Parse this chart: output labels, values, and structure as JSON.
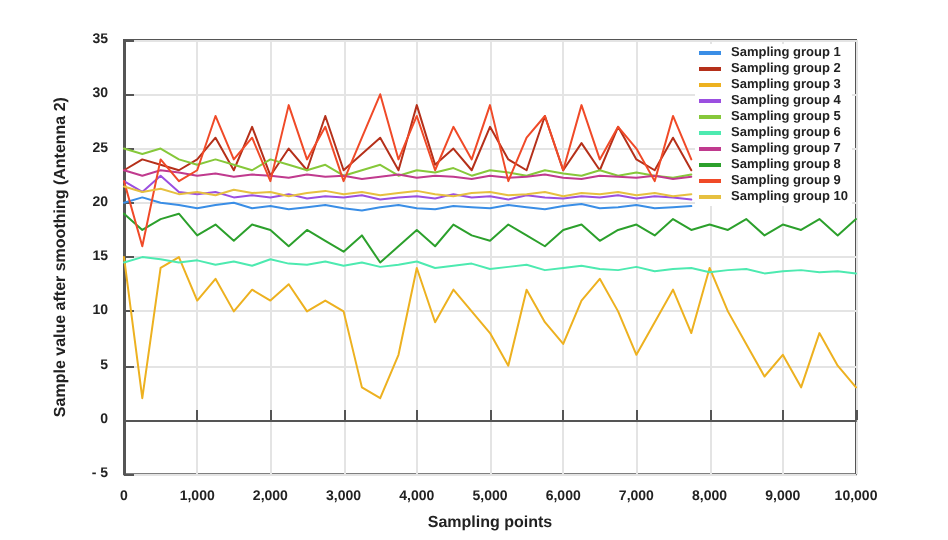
{
  "chart_data": {
    "type": "line",
    "xlabel": "Sampling points",
    "ylabel": "Sample value after smoothing (Antenna 2)",
    "xlim": [
      0,
      10000
    ],
    "ylim": [
      -5,
      35
    ],
    "xticks": [
      0,
      {
        "value": 1000,
        "label": "1,000"
      },
      {
        "value": 2000,
        "label": "2,000"
      },
      {
        "value": 3000,
        "label": "3,000"
      },
      {
        "value": 4000,
        "label": "4,000"
      },
      {
        "value": 5000,
        "label": "5,000"
      },
      {
        "value": 6000,
        "label": "6,000"
      },
      {
        "value": 7000,
        "label": "7,000"
      },
      {
        "value": 8000,
        "label": "8,000"
      },
      {
        "value": 9000,
        "label": "9,000"
      },
      {
        "value": 10000,
        "label": "10,000"
      }
    ],
    "yticks": [
      {
        "value": -5,
        "label": "- 5"
      },
      0,
      5,
      10,
      15,
      20,
      25,
      30,
      35
    ],
    "grid": true,
    "legend": "top right",
    "marker": "none",
    "line_style": "solid",
    "x": [
      0,
      250,
      500,
      750,
      1000,
      1250,
      1500,
      1750,
      2000,
      2250,
      2500,
      2750,
      3000,
      3250,
      3500,
      3750,
      4000,
      4250,
      4500,
      4750,
      5000,
      5250,
      5500,
      5750,
      6000,
      6250,
      6500,
      6750,
      7000,
      7250,
      7500,
      7750,
      8000,
      8250,
      8500,
      8750,
      9000,
      9250,
      9500,
      9750,
      10000
    ],
    "series": [
      {
        "name": "Sampling group 1",
        "color": "#3a8ee6",
        "values": [
          20,
          20.5,
          20,
          19.8,
          19.5,
          19.8,
          20,
          19.5,
          19.7,
          19.4,
          19.6,
          19.8,
          19.5,
          19.3,
          19.6,
          19.8,
          19.5,
          19.4,
          19.7,
          19.6,
          19.5,
          19.8,
          19.6,
          19.4,
          19.7,
          19.9,
          19.5,
          19.6,
          19.8,
          19.5,
          19.6,
          19.7,
          null,
          null,
          null,
          null,
          null,
          null,
          null,
          null,
          null
        ]
      },
      {
        "name": "Sampling group 2",
        "color": "#b5301a",
        "values": [
          23,
          24,
          23.5,
          23,
          24,
          26,
          23,
          27,
          22.5,
          25,
          23,
          28,
          23,
          24.5,
          26,
          23,
          29,
          23.5,
          25,
          23,
          27,
          24,
          23,
          28,
          23,
          25.5,
          23,
          27,
          24,
          23,
          26,
          23,
          null,
          null,
          null,
          null,
          null,
          null,
          null,
          null,
          null
        ]
      },
      {
        "name": "Sampling group 3",
        "color": "#edb120",
        "values": [
          15,
          2,
          14,
          15,
          11,
          13,
          10,
          12,
          11,
          12.5,
          10,
          11,
          10,
          3,
          2,
          6,
          14,
          9,
          12,
          10,
          8,
          5,
          12,
          9,
          7,
          11,
          13,
          10,
          6,
          9,
          12,
          8,
          14,
          10,
          7,
          4,
          6,
          3,
          8,
          5,
          3
        ]
      },
      {
        "name": "Sampling group 4",
        "color": "#9b4fe0",
        "values": [
          22,
          21,
          22.5,
          21,
          20.8,
          21,
          20.5,
          20.7,
          20.5,
          20.8,
          20.4,
          20.6,
          20.5,
          20.7,
          20.3,
          20.5,
          20.6,
          20.4,
          20.8,
          20.5,
          20.6,
          20.3,
          20.7,
          20.5,
          20.4,
          20.6,
          20.5,
          20.7,
          20.4,
          20.6,
          20.5,
          20.3,
          null,
          null,
          null,
          null,
          null,
          null,
          null,
          null,
          null
        ]
      },
      {
        "name": "Sampling group 5",
        "color": "#86c83a",
        "values": [
          25,
          24.5,
          25,
          24,
          23.5,
          24,
          23.5,
          23,
          24,
          23.5,
          23,
          23.5,
          22.5,
          23,
          23.5,
          22.5,
          23,
          22.8,
          23.2,
          22.5,
          23,
          22.8,
          22.5,
          23,
          22.7,
          22.5,
          23,
          22.5,
          22.8,
          22.5,
          22.3,
          22.6,
          null,
          null,
          null,
          null,
          null,
          null,
          null,
          null,
          null
        ]
      },
      {
        "name": "Sampling group 6",
        "color": "#4deab0",
        "values": [
          14.5,
          15,
          14.8,
          14.5,
          14.7,
          14.3,
          14.6,
          14.2,
          14.8,
          14.4,
          14.3,
          14.6,
          14.2,
          14.5,
          14.1,
          14.3,
          14.6,
          14,
          14.2,
          14.4,
          13.9,
          14.1,
          14.3,
          13.8,
          14,
          14.2,
          13.9,
          13.8,
          14.1,
          13.7,
          13.9,
          14,
          13.6,
          13.8,
          13.9,
          13.5,
          13.7,
          13.8,
          13.6,
          13.7,
          13.5
        ]
      },
      {
        "name": "Sampling group 7",
        "color": "#c03a8e",
        "values": [
          23,
          22.5,
          23,
          22.8,
          22.5,
          22.7,
          22.4,
          22.6,
          22.5,
          22.3,
          22.6,
          22.4,
          22.5,
          22.2,
          22.4,
          22.6,
          22.3,
          22.5,
          22.4,
          22.2,
          22.5,
          22.3,
          22.4,
          22.6,
          22.3,
          22.2,
          22.5,
          22.4,
          22.3,
          22.5,
          22.2,
          22.4,
          null,
          null,
          null,
          null,
          null,
          null,
          null,
          null,
          null
        ]
      },
      {
        "name": "Sampling group 8",
        "color": "#2ca02c",
        "values": [
          19,
          17.5,
          18.5,
          19,
          17,
          18,
          16.5,
          18,
          17.5,
          16,
          17.5,
          16.5,
          15.5,
          17,
          14.5,
          16,
          17.5,
          16,
          18,
          17,
          16.5,
          18,
          17,
          16,
          17.5,
          18,
          16.5,
          17.5,
          18,
          17,
          18.5,
          17.5,
          18,
          17.5,
          18.5,
          17,
          18,
          17.5,
          18.5,
          17,
          18.5
        ]
      },
      {
        "name": "Sampling group 9",
        "color": "#f04a28",
        "values": [
          22,
          16,
          24,
          22,
          23,
          28,
          24,
          26,
          22,
          29,
          24,
          27,
          22,
          26,
          30,
          24,
          28,
          23,
          27,
          24,
          29,
          22,
          26,
          28,
          23,
          29,
          24,
          27,
          25,
          22,
          28,
          24,
          null,
          null,
          null,
          null,
          null,
          null,
          null,
          null,
          null
        ]
      },
      {
        "name": "Sampling group 10",
        "color": "#e6c040",
        "values": [
          21.5,
          21,
          21.3,
          20.8,
          21,
          20.7,
          21.2,
          20.9,
          21,
          20.6,
          20.9,
          21.1,
          20.8,
          21,
          20.7,
          20.9,
          21.1,
          20.8,
          20.6,
          20.9,
          21,
          20.7,
          20.8,
          21,
          20.6,
          20.9,
          20.8,
          21,
          20.7,
          20.9,
          20.6,
          20.8,
          null,
          null,
          null,
          null,
          null,
          null,
          null,
          null,
          null
        ]
      }
    ]
  }
}
